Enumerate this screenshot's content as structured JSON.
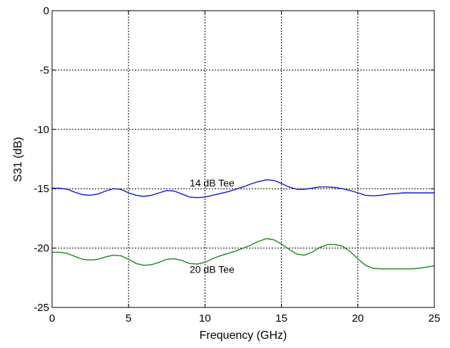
{
  "chart_data": {
    "type": "line",
    "xlabel": "Frequency (GHz)",
    "ylabel": "S31 (dB)",
    "xlim": [
      0,
      25
    ],
    "ylim": [
      -25,
      0
    ],
    "xticks": [
      0,
      5,
      10,
      15,
      20,
      25
    ],
    "yticks": [
      0,
      -5,
      -10,
      -15,
      -20,
      -25
    ],
    "grid": true,
    "annotations": [
      {
        "text": "14 dB Tee",
        "x": 9.0,
        "y": -14.8
      },
      {
        "text": "20 dB Tee",
        "x": 9.0,
        "y": -22.1
      }
    ],
    "series": [
      {
        "name": "14 dB Tee",
        "color": "#1515d8",
        "x": [
          0,
          0.5,
          1,
          1.5,
          2,
          2.5,
          3,
          3.5,
          4,
          4.5,
          5,
          5.5,
          6,
          6.5,
          7,
          7.5,
          8,
          8.5,
          9,
          9.5,
          10,
          10.5,
          11,
          11.5,
          12,
          12.5,
          13,
          13.5,
          14,
          14.5,
          15,
          15.5,
          16,
          16.5,
          17,
          17.5,
          18,
          18.5,
          19,
          19.5,
          20,
          20.5,
          21,
          21.5,
          22,
          22.5,
          23,
          23.5,
          24,
          24.5,
          25
        ],
        "values": [
          -14.95,
          -14.95,
          -15.05,
          -15.3,
          -15.5,
          -15.55,
          -15.45,
          -15.2,
          -15.0,
          -15.05,
          -15.35,
          -15.55,
          -15.65,
          -15.55,
          -15.35,
          -15.15,
          -15.2,
          -15.45,
          -15.7,
          -15.75,
          -15.7,
          -15.55,
          -15.4,
          -15.25,
          -15.05,
          -14.85,
          -14.6,
          -14.4,
          -14.25,
          -14.3,
          -14.55,
          -14.85,
          -15.05,
          -15.05,
          -14.95,
          -14.85,
          -14.85,
          -14.9,
          -15.0,
          -15.15,
          -15.35,
          -15.55,
          -15.6,
          -15.55,
          -15.45,
          -15.4,
          -15.35,
          -15.35,
          -15.35,
          -15.35,
          -15.35
        ]
      },
      {
        "name": "20 dB Tee",
        "color": "#178a17",
        "x": [
          0,
          0.5,
          1,
          1.5,
          2,
          2.5,
          3,
          3.5,
          4,
          4.5,
          5,
          5.5,
          6,
          6.5,
          7,
          7.5,
          8,
          8.5,
          9,
          9.5,
          10,
          10.5,
          11,
          11.5,
          12,
          12.5,
          13,
          13.5,
          14,
          14.5,
          15,
          15.5,
          16,
          16.5,
          17,
          17.5,
          18,
          18.5,
          19,
          19.5,
          20,
          20.5,
          21,
          21.5,
          22,
          22.5,
          23,
          23.5,
          24,
          24.5,
          25
        ],
        "values": [
          -20.35,
          -20.35,
          -20.45,
          -20.7,
          -20.95,
          -21.0,
          -20.95,
          -20.75,
          -20.6,
          -20.65,
          -20.95,
          -21.3,
          -21.45,
          -21.4,
          -21.2,
          -20.95,
          -20.9,
          -21.05,
          -21.3,
          -21.35,
          -21.2,
          -20.9,
          -20.65,
          -20.45,
          -20.25,
          -20.0,
          -19.75,
          -19.45,
          -19.2,
          -19.3,
          -19.65,
          -20.1,
          -20.5,
          -20.6,
          -20.35,
          -19.95,
          -19.7,
          -19.7,
          -19.85,
          -20.3,
          -20.9,
          -21.45,
          -21.7,
          -21.75,
          -21.75,
          -21.75,
          -21.75,
          -21.75,
          -21.7,
          -21.6,
          -21.5
        ]
      }
    ]
  }
}
